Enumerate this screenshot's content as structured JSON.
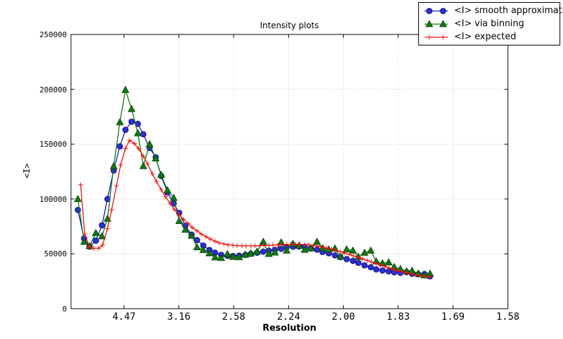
{
  "figure": {
    "background": "#ffffff",
    "axes_color": "#000000",
    "grid_color": "#c0c0c0"
  },
  "chart_data": {
    "type": "line",
    "title": "Intensity plots",
    "xlabel": "Resolution",
    "ylabel": "<I>",
    "grid": true,
    "legend_position": "top-right",
    "x_axis": {
      "note": "axis linear in 1/d^2; tick labels show d (resolution)",
      "range": [
        0.0016,
        0.4
      ],
      "tick_values": [
        0.05,
        0.1,
        0.15,
        0.2,
        0.25,
        0.3,
        0.35,
        0.4
      ],
      "tick_labels": [
        "4.47",
        "3.16",
        "2.58",
        "2.24",
        "2.00",
        "1.83",
        "1.69",
        "1.58"
      ]
    },
    "y_axis": {
      "range": [
        0,
        250000
      ],
      "tick_values": [
        0,
        50000,
        100000,
        150000,
        200000,
        250000
      ],
      "tick_labels": [
        "0",
        "50000",
        "100000",
        "150000",
        "200000",
        "250000"
      ]
    },
    "series": [
      {
        "name": "<I> smooth approximation",
        "marker": "circle",
        "line_color": "#1515cf",
        "marker_fill": "#3030cf",
        "marker_edge": "#0b0b8f",
        "x": [
          0.0079,
          0.0136,
          0.0186,
          0.0243,
          0.0299,
          0.0349,
          0.0406,
          0.0462,
          0.0513,
          0.0569,
          0.0626,
          0.0676,
          0.0733,
          0.0789,
          0.0839,
          0.0896,
          0.0953,
          0.1003,
          0.1059,
          0.1116,
          0.1166,
          0.1223,
          0.1279,
          0.133,
          0.1386,
          0.1443,
          0.1493,
          0.155,
          0.1606,
          0.1656,
          0.1713,
          0.177,
          0.182,
          0.1876,
          0.1933,
          0.1983,
          0.204,
          0.2096,
          0.2147,
          0.2203,
          0.226,
          0.231,
          0.2367,
          0.2423,
          0.2473,
          0.253,
          0.2587,
          0.2637,
          0.2693,
          0.275,
          0.28,
          0.2857,
          0.2913,
          0.2964,
          0.302,
          0.3077,
          0.3127,
          0.3184,
          0.324,
          0.329
        ],
        "y": [
          90000,
          64000,
          56500,
          62000,
          76000,
          100000,
          126000,
          148000,
          163000,
          170500,
          168500,
          159000,
          146500,
          138000,
          121000,
          106000,
          96000,
          87300,
          75500,
          67500,
          62500,
          57500,
          53500,
          51000,
          49000,
          48200,
          48000,
          48300,
          49000,
          50000,
          51000,
          52000,
          52800,
          53600,
          54600,
          55800,
          56500,
          56700,
          56300,
          54900,
          53800,
          51700,
          50500,
          48600,
          47000,
          45200,
          43600,
          41800,
          39500,
          37800,
          35800,
          34800,
          34000,
          33200,
          32700,
          33300,
          31800,
          31400,
          31600,
          29500
        ]
      },
      {
        "name": "<I> via binning",
        "marker": "triangle",
        "line_color": "#0b7a0b",
        "marker_fill": "#147814",
        "marker_edge": "#074d07",
        "x": [
          0.0079,
          0.0136,
          0.0186,
          0.0243,
          0.0299,
          0.0349,
          0.0406,
          0.0462,
          0.0513,
          0.0569,
          0.0626,
          0.0676,
          0.0733,
          0.0789,
          0.0839,
          0.0896,
          0.0953,
          0.1003,
          0.1059,
          0.1116,
          0.1166,
          0.1223,
          0.1279,
          0.133,
          0.1386,
          0.1443,
          0.1493,
          0.155,
          0.1606,
          0.1656,
          0.1713,
          0.177,
          0.182,
          0.1876,
          0.1933,
          0.1983,
          0.204,
          0.2096,
          0.2147,
          0.2203,
          0.226,
          0.231,
          0.2367,
          0.2423,
          0.2473,
          0.253,
          0.2587,
          0.2637,
          0.2693,
          0.275,
          0.28,
          0.2857,
          0.2913,
          0.2964,
          0.302,
          0.3077,
          0.3127,
          0.3184,
          0.324,
          0.329
        ],
        "y": [
          100000,
          61000,
          57000,
          69000,
          66000,
          82000,
          130000,
          170000,
          199500,
          182000,
          160000,
          130000,
          150000,
          137000,
          122000,
          108000,
          101000,
          80000,
          72000,
          66500,
          56000,
          53500,
          50500,
          46800,
          46300,
          49800,
          47300,
          47000,
          49300,
          50400,
          52000,
          61000,
          50000,
          51200,
          60500,
          53000,
          59200,
          57400,
          53700,
          55000,
          61000,
          55300,
          54000,
          54900,
          47500,
          54100,
          53000,
          47400,
          51000,
          53000,
          43100,
          41400,
          42300,
          38000,
          36300,
          34100,
          34600,
          32100,
          30400,
          32000
        ]
      },
      {
        "name": "<I> expected",
        "marker": "plus",
        "line_color": "#f20c0c",
        "marker_fill": "#f20c0c",
        "marker_edge": "#f20c0c",
        "x": [
          0.0104,
          0.0142,
          0.0186,
          0.0224,
          0.0268,
          0.0305,
          0.0349,
          0.0387,
          0.0431,
          0.0469,
          0.0513,
          0.055,
          0.0594,
          0.0632,
          0.0676,
          0.0714,
          0.0758,
          0.0796,
          0.0839,
          0.0877,
          0.0921,
          0.0959,
          0.1003,
          0.1041,
          0.1085,
          0.1122,
          0.1166,
          0.1204,
          0.1248,
          0.1286,
          0.133,
          0.1367,
          0.1411,
          0.1449,
          0.1493,
          0.1531,
          0.1575,
          0.1612,
          0.1656,
          0.1694,
          0.1738,
          0.1776,
          0.182,
          0.1857,
          0.1901,
          0.1939,
          0.1983,
          0.2021,
          0.2065,
          0.2102,
          0.2146,
          0.2184,
          0.2228,
          0.2266,
          0.231,
          0.2347,
          0.2391,
          0.2429,
          0.2473,
          0.2511,
          0.2555,
          0.2592,
          0.2636,
          0.2674,
          0.2718,
          0.2756,
          0.28,
          0.2837,
          0.2881,
          0.2919,
          0.2963,
          0.3001,
          0.3045,
          0.3082,
          0.3126,
          0.3164,
          0.3208,
          0.3246,
          0.329
        ],
        "y": [
          113000,
          68000,
          56000,
          55000,
          55000,
          58000,
          73000,
          90000,
          112000,
          131000,
          146000,
          153500,
          150500,
          146000,
          139000,
          132000,
          123000,
          116000,
          108500,
          102000,
          96000,
          90500,
          85500,
          81500,
          77500,
          74000,
          71000,
          68000,
          65500,
          63500,
          61500,
          60000,
          59000,
          58200,
          57800,
          57500,
          57300,
          57200,
          57200,
          57300,
          57400,
          57600,
          57800,
          58000,
          58200,
          58400,
          58600,
          58700,
          58700,
          58700,
          58500,
          58200,
          57700,
          57000,
          56200,
          55300,
          54300,
          53200,
          52000,
          50800,
          49500,
          48200,
          46800,
          45400,
          44000,
          42600,
          41200,
          39800,
          38400,
          37100,
          35800,
          34600,
          33500,
          32500,
          31600,
          30800,
          30100,
          29500,
          29000
        ]
      }
    ]
  }
}
